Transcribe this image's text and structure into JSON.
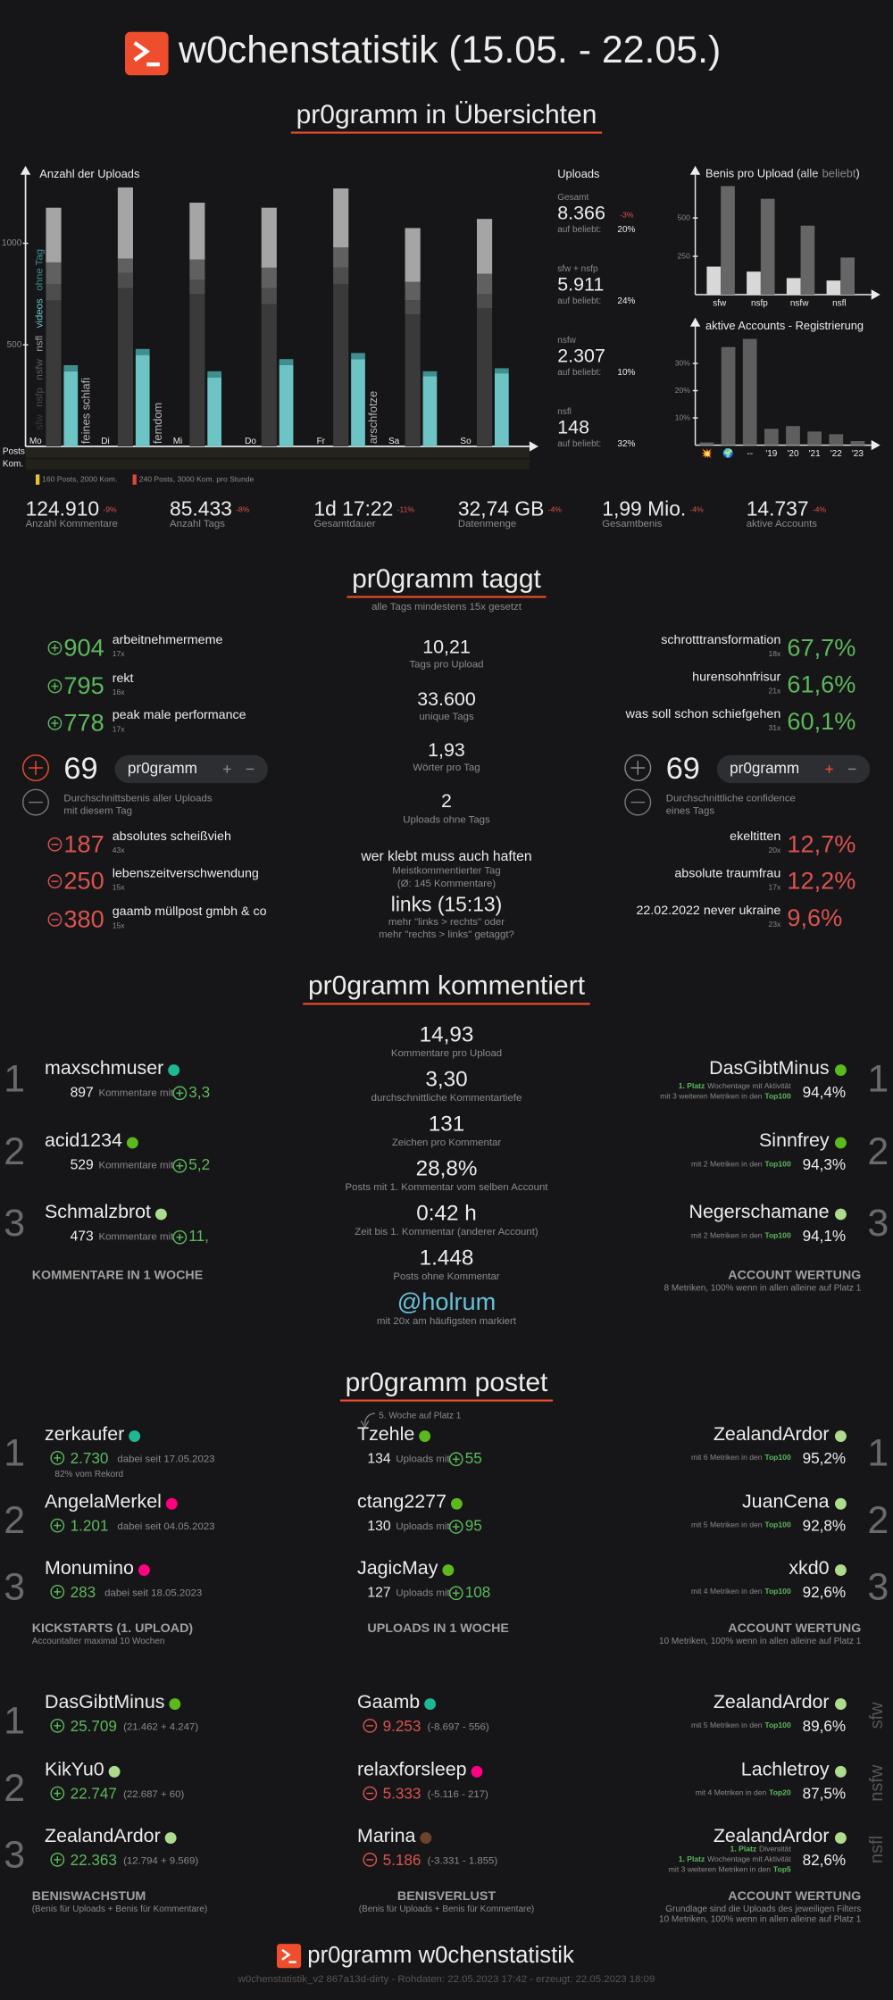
{
  "header": {
    "title": "w0chenstatistik (15.05. - 22.05.)"
  },
  "chart_data": [
    {
      "type": "bar",
      "title": "Anzahl der Uploads",
      "categories": [
        "Mo",
        "Di",
        "Mi",
        "Do",
        "Fr",
        "Sa",
        "So"
      ],
      "tags": [
        "feines schlafi",
        "femdom",
        null,
        null,
        "arschfotze",
        null,
        null
      ],
      "series": [
        {
          "name": "sfw",
          "color": "#3a3a3a",
          "position": "left",
          "values": [
            719,
            780,
            750,
            700,
            800,
            650,
            680
          ]
        },
        {
          "name": "nsfp",
          "color": "#4d4d4d",
          "position": "left",
          "values": [
            81,
            75,
            70,
            80,
            80,
            70,
            70
          ]
        },
        {
          "name": "nsfw",
          "color": "#606060",
          "position": "left",
          "values": [
            106,
            70,
            100,
            100,
            100,
            90,
            100
          ]
        },
        {
          "name": "nsfl",
          "color": "#a5a5a5",
          "position": "left",
          "values": [
            269,
            350,
            280,
            295,
            290,
            265,
            270
          ]
        },
        {
          "name": "videos",
          "color": "#6cc4c4",
          "position": "right",
          "values": [
            370,
            450,
            340,
            400,
            430,
            345,
            360
          ]
        },
        {
          "name": "ohne Tag",
          "color": "#3f8f8f",
          "position": "right",
          "values": [
            30,
            30,
            30,
            30,
            30,
            25,
            25
          ]
        }
      ],
      "ylim": [
        0,
        1350
      ],
      "yticks": [
        500,
        1000
      ],
      "row_labels": [
        "Posts",
        "Kom."
      ],
      "legend": [
        {
          "text": "160 Posts, 2000 Kom.",
          "color": "#e6c22e"
        },
        {
          "text": "240 Posts, 3000 Kom. pro Stunde",
          "color": "#e0463a"
        }
      ]
    },
    {
      "type": "bar",
      "title": "Benis pro Upload (",
      "title_end": ")",
      "categories": [
        "sfw",
        "nsfp",
        "nsfw",
        "nsfl"
      ],
      "series": [
        {
          "name": "alle",
          "color": "#d8d8d8",
          "values": [
            183,
            150,
            108,
            92
          ]
        },
        {
          "name": "beliebt",
          "color": "#666666",
          "values": [
            708,
            625,
            450,
            242
          ]
        }
      ],
      "ylim": [
        0,
        840
      ],
      "yticks": [
        250,
        500
      ]
    },
    {
      "type": "bar",
      "title": "aktive Accounts - Registrierung",
      "categories": [
        "💥",
        "🌍",
        "--",
        "'19",
        "'20",
        "'21",
        "'22",
        "'23"
      ],
      "values": [
        1,
        36,
        39,
        6,
        7,
        5,
        4,
        1.5
      ],
      "color": "#5e5e5e",
      "ylim": [
        0,
        44
      ],
      "yticks": [
        {
          "value": 10,
          "label": "10%"
        },
        {
          "value": 20,
          "label": "20%"
        },
        {
          "value": 30,
          "label": "30%"
        }
      ]
    }
  ],
  "overview": {
    "heading": "pr0gramm in Übersichten",
    "uploads": {
      "title": "Uploads",
      "rows": [
        {
          "label": "Gesamt",
          "value": "8.366",
          "change": "-3%",
          "sub": "auf beliebt:",
          "share": "20%"
        },
        {
          "label": "sfw + nsfp",
          "value": "5.911",
          "sub": "auf beliebt:",
          "share": "24%"
        },
        {
          "label": "nsfw",
          "value": "2.307",
          "sub": "auf beliebt:",
          "share": "10%"
        },
        {
          "label": "nsfl",
          "value": "148",
          "sub": "auf beliebt:",
          "share": "32%"
        }
      ]
    },
    "stats": [
      {
        "value": "124.910",
        "change": "-9%",
        "label": "Anzahl Kommentare"
      },
      {
        "value": "85.433",
        "change": "-8%",
        "label": "Anzahl Tags"
      },
      {
        "value": "1d 17:22",
        "change": "-11%",
        "label": "Gesamtdauer"
      },
      {
        "value": "32,74 GB",
        "change": "-4%",
        "label": "Datenmenge"
      },
      {
        "value": "1,99 Mio.",
        "change": "-4%",
        "label": "Gesamtbenis"
      },
      {
        "value": "14.737",
        "change": "-4%",
        "label": "aktive Accounts"
      }
    ]
  },
  "tagging": {
    "heading": "pr0gramm taggt",
    "subtitle": "alle Tags mindestens 15x gesetzt",
    "top_benis": [
      {
        "value": "904",
        "name": "arbeitnehmermeme",
        "count": "17x"
      },
      {
        "value": "795",
        "name": "rekt",
        "count": "16x"
      },
      {
        "value": "778",
        "name": "peak male performance",
        "count": "17x"
      }
    ],
    "metrics": [
      {
        "value": "10,21",
        "label": "Tags pro Upload"
      },
      {
        "value": "33.600",
        "label": "unique Tags"
      },
      {
        "value": "1,93",
        "label": "Wörter pro Tag"
      },
      {
        "value": "2",
        "label": "Uploads ohne Tags"
      },
      {
        "value": "wer klebt muss auch haften",
        "label": "Meistkommentierter Tag",
        "note": "(Ø: 145 Kommentare)"
      },
      {
        "value": "links (15:13)",
        "label": "mehr \"links > rechts\" oder",
        "note": "mehr \"rechts > links\" getaggt?"
      }
    ],
    "top_confidence": [
      {
        "name": "schrotttransformation",
        "count": "18x",
        "value": "67,7%"
      },
      {
        "name": "hurensohnfrisur",
        "count": "21x",
        "value": "61,6%"
      },
      {
        "name": "was soll schon schiefgehen",
        "count": "31x",
        "value": "60,1%"
      }
    ],
    "avg_benis": {
      "value": "69",
      "tag": "pr0gramm",
      "label": "Durchschnittsbenis aller Uploads",
      "label2": "mit diesem Tag"
    },
    "avg_confidence": {
      "value": "69",
      "tag": "pr0gramm",
      "label": "Durchschnittliche confidence",
      "label2": "eines Tags"
    },
    "low_benis": [
      {
        "value": "187",
        "name": "absolutes scheißvieh",
        "count": "43x"
      },
      {
        "value": "250",
        "name": "lebenszeitverschwendung",
        "count": "15x"
      },
      {
        "value": "380",
        "name": "gaamb müllpost gmbh & co",
        "count": "15x"
      }
    ],
    "low_confidence": [
      {
        "name": "ekeltitten",
        "count": "20x",
        "value": "12,7%"
      },
      {
        "name": "absolute traumfrau",
        "count": "17x",
        "value": "12,2%"
      },
      {
        "name": "22.02.2022 never ukraine",
        "count": "23x",
        "value": "9,6%"
      }
    ]
  },
  "commenting": {
    "heading": "pr0gramm kommentiert",
    "top": {
      "title": "KOMMENTARE IN 1 WOCHE",
      "entries": [
        {
          "rank": "1",
          "name": "maxschmuser",
          "color": "#1cb992",
          "count": "897",
          "label": "Kommentare mit",
          "score": "3,3"
        },
        {
          "rank": "2",
          "name": "acid1234",
          "color": "#5bb91c",
          "count": "529",
          "label": "Kommentare mit",
          "score": "5,2"
        },
        {
          "rank": "3",
          "name": "Schmalzbrot",
          "color": "#addc8d",
          "count": "473",
          "label": "Kommentare mit",
          "score": "11,"
        }
      ]
    },
    "metrics": [
      {
        "value": "14,93",
        "label": "Kommentare pro Upload"
      },
      {
        "value": "3,30",
        "label": "durchschnittliche Kommentartiefe"
      },
      {
        "value": "131",
        "label": "Zeichen pro Kommentar"
      },
      {
        "value": "28,8%",
        "label": "Posts mit 1. Kommentar vom selben Account"
      },
      {
        "value": "0:42 h",
        "label": "Zeit bis 1. Kommentar (anderer Account)"
      },
      {
        "value": "1.448",
        "label": "Posts ohne Kommentar"
      }
    ],
    "mention": {
      "value": "@holrum",
      "label": "mit 20x am häufigsten markiert"
    },
    "rating": {
      "title": "ACCOUNT WERTUNG",
      "subtitle": "8 Metriken, 100% wenn in allen alleine auf Platz 1",
      "entries": [
        {
          "rank": "1",
          "name": "DasGibtMinus",
          "color": "#5bb91c",
          "value": "94,4%",
          "lines": [
            {
              "hl": "1. Platz",
              "post": "Wochentage mit Aktivität"
            },
            {
              "pre": "mit 3 weiteren Metriken in den",
              "hl": "Top100"
            }
          ]
        },
        {
          "rank": "2",
          "name": "Sinnfrey",
          "color": "#5bb91c",
          "value": "94,3%",
          "lines": [
            {
              "pre": "mit 2 Metriken in den",
              "hl": "Top100"
            }
          ]
        },
        {
          "rank": "3",
          "name": "Negerschamane",
          "color": "#addc8d",
          "value": "94,1%",
          "lines": [
            {
              "pre": "mit 2 Metriken in den",
              "hl": "Top100"
            }
          ]
        }
      ]
    }
  },
  "posting": {
    "heading": "pr0gramm postet",
    "kickstarts": {
      "title": "KICKSTARTS (1. UPLOAD)",
      "subtitle": "Accountalter maximal 10 Wochen",
      "entries": [
        {
          "rank": "1",
          "name": "zerkaufer",
          "color": "#1cb992",
          "value": "2.730",
          "since": "dabei seit 17.05.2023",
          "note": "82% vom Rekord"
        },
        {
          "rank": "2",
          "name": "AngelaMerkel",
          "color": "#ff0082",
          "value": "1.201",
          "since": "dabei seit 04.05.2023"
        },
        {
          "rank": "3",
          "name": "Monumino",
          "color": "#ff0082",
          "value": "283",
          "since": "dabei seit 18.05.2023"
        }
      ]
    },
    "uploads": {
      "title": "UPLOADS IN 1 WOCHE",
      "annotation": "5. Woche auf Platz 1",
      "entries": [
        {
          "name": "Tzehle",
          "color": "#5bb91c",
          "count": "134",
          "label": "Uploads mit",
          "score": "55"
        },
        {
          "name": "ctang2277",
          "color": "#5bb91c",
          "count": "130",
          "label": "Uploads mit",
          "score": "95"
        },
        {
          "name": "JagicMay",
          "color": "#5bb91c",
          "count": "127",
          "label": "Uploads mit",
          "score": "108"
        }
      ]
    },
    "rating": {
      "title": "ACCOUNT WERTUNG",
      "subtitle": "10 Metriken, 100% wenn in allen alleine auf Platz 1",
      "entries": [
        {
          "rank": "1",
          "name": "ZealandArdor",
          "color": "#addc8d",
          "value": "95,2%",
          "lines": [
            {
              "pre": "mit 6 Metriken in den",
              "hl": "Top100"
            }
          ]
        },
        {
          "rank": "2",
          "name": "JuanCena",
          "color": "#addc8d",
          "value": "92,8%",
          "lines": [
            {
              "pre": "mit 5 Metriken in den",
              "hl": "Top100"
            }
          ]
        },
        {
          "rank": "3",
          "name": "xkd0",
          "color": "#addc8d",
          "value": "92,6%",
          "lines": [
            {
              "pre": "mit 4 Metriken in den",
              "hl": "Top100"
            }
          ]
        }
      ]
    }
  },
  "benis": {
    "growth": {
      "title": "BENISWACHSTUM",
      "subtitle": "(Benis für Uploads + Benis für Kommentare)",
      "entries": [
        {
          "rank": "1",
          "name": "DasGibtMinus",
          "color": "#5bb91c",
          "value": "25.709",
          "detail": "(21.462 + 4.247)"
        },
        {
          "rank": "2",
          "name": "KikYu0",
          "color": "#addc8d",
          "value": "22.747",
          "detail": "(22.687 + 60)"
        },
        {
          "rank": "3",
          "name": "ZealandArdor",
          "color": "#addc8d",
          "value": "22.363",
          "detail": "(12.794 + 9.569)"
        }
      ]
    },
    "loss": {
      "title": "BENISVERLUST",
      "subtitle": "(Benis für Uploads + Benis für Kommentare)",
      "entries": [
        {
          "name": "Gaamb",
          "color": "#1cb992",
          "value": "9.253",
          "detail": "(-8.697 - 556)"
        },
        {
          "name": "relaxforsleep",
          "color": "#ff0082",
          "value": "5.333",
          "detail": "(-5.116 - 217)"
        },
        {
          "name": "Marina",
          "color": "#6c432b",
          "value": "5.186",
          "detail": "(-3.331 - 1.855)"
        }
      ]
    },
    "rating": {
      "title": "ACCOUNT WERTUNG",
      "note": "Grundlage sind die Uploads des jeweiligen Filters",
      "subtitle": "10 Metriken, 100% wenn in allen alleine auf Platz 1",
      "entries": [
        {
          "name": "ZealandArdor",
          "color": "#addc8d",
          "value": "89,6%",
          "filter": "sfw",
          "lines": [
            {
              "pre": "mit 5 Metriken in den",
              "hl": "Top100"
            }
          ]
        },
        {
          "name": "Lachletroy",
          "color": "#addc8d",
          "value": "87,5%",
          "filter": "nsfw",
          "lines": [
            {
              "pre": "mit 4 Metriken in den",
              "hl": "Top20"
            }
          ]
        },
        {
          "name": "ZealandArdor",
          "color": "#addc8d",
          "value": "82,6%",
          "filter": "nsfl",
          "lines": [
            {
              "hl": "1. Platz",
              "post": "Diversität"
            },
            {
              "hl": "1. Platz",
              "post": "Wochentage mit Aktivität"
            },
            {
              "pre": "mit 3 weiteren Metriken in den",
              "hl": "Top5"
            }
          ]
        }
      ]
    }
  },
  "footer": {
    "title": "pr0gramm w0chenstatistik",
    "meta": "w0chenstatistik_v2 867a13d-dirty - Rohdaten: 22.05.2023 17:42 - erzeugt: 22.05.2023 18:09"
  }
}
